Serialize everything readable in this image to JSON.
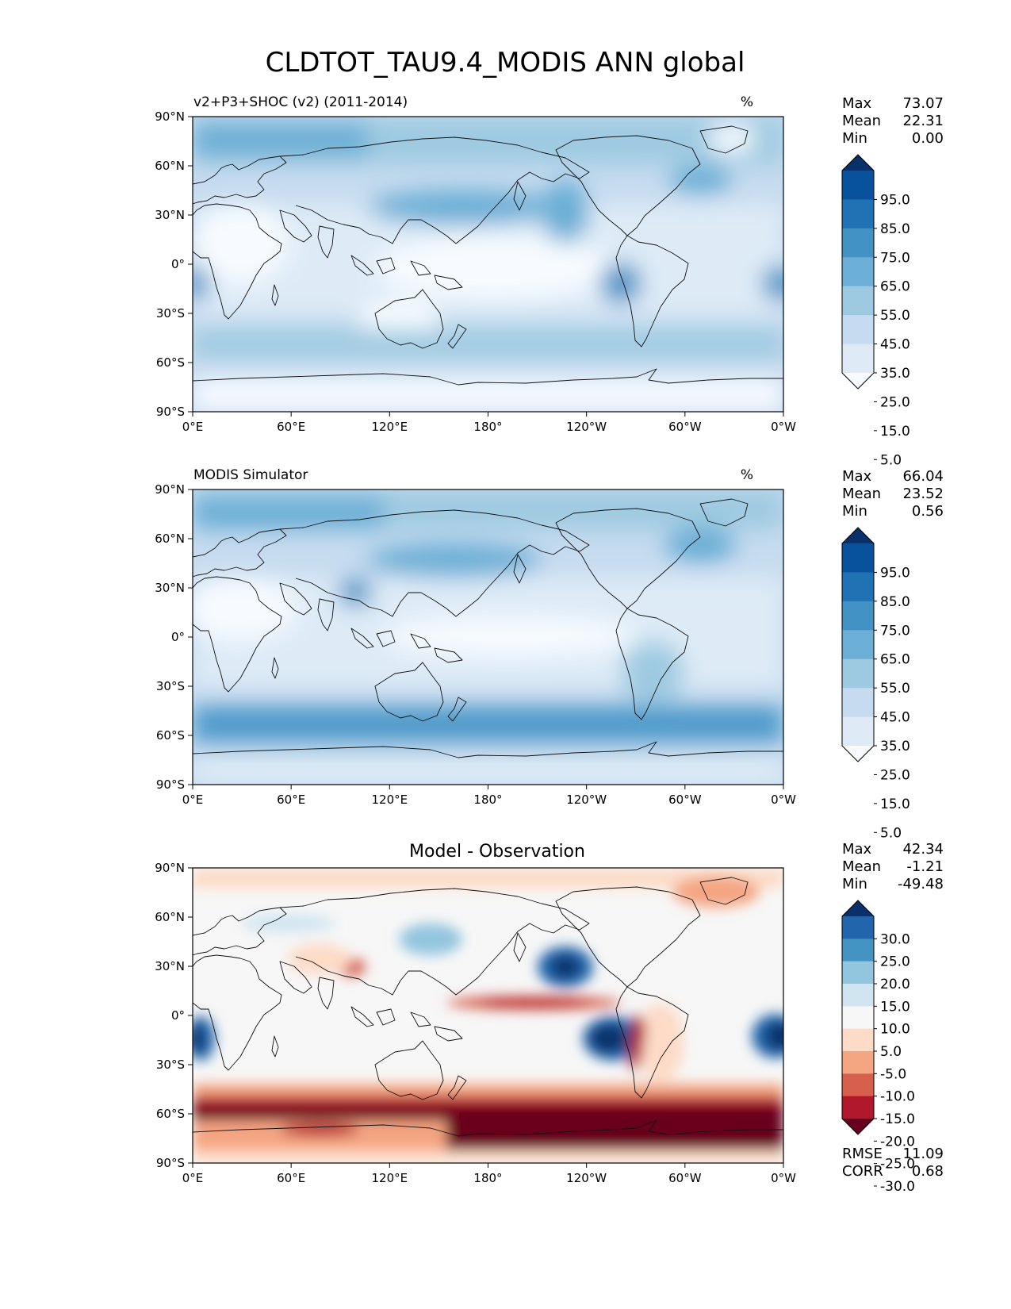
{
  "figure": {
    "title": "CLDTOT_TAU9.4_MODIS ANN global"
  },
  "axes": {
    "lat_ticks": [
      "90°N",
      "60°N",
      "30°N",
      "0°",
      "30°S",
      "60°S",
      "90°S"
    ],
    "lon_ticks": [
      "0°E",
      "60°E",
      "120°E",
      "180°",
      "120°W",
      "60°W",
      "0°W"
    ]
  },
  "panels": [
    {
      "id": "model",
      "title_left": "v2+P3+SHOC (v2) (2011-2014)",
      "title_center": "",
      "units": "%",
      "stats": [
        {
          "label": "Max",
          "value": "73.07"
        },
        {
          "label": "Mean",
          "value": "22.31"
        },
        {
          "label": "Min",
          "value": "0.00"
        }
      ],
      "colorbar": {
        "labels": [
          "95.0",
          "85.0",
          "75.0",
          "65.0",
          "55.0",
          "45.0",
          "35.0",
          "25.0",
          "15.0",
          "5.0"
        ],
        "colors": [
          "#08306b",
          "#08519c",
          "#2171b5",
          "#4292c6",
          "#6baed6",
          "#9ecae1",
          "#c6dbef",
          "#deebf7",
          "#f7fbff"
        ]
      }
    },
    {
      "id": "obs",
      "title_left": "MODIS Simulator",
      "title_center": "",
      "units": "%",
      "stats": [
        {
          "label": "Max",
          "value": "66.04"
        },
        {
          "label": "Mean",
          "value": "23.52"
        },
        {
          "label": "Min",
          "value": "0.56"
        }
      ],
      "colorbar": {
        "labels": [
          "95.0",
          "85.0",
          "75.0",
          "65.0",
          "55.0",
          "45.0",
          "35.0",
          "25.0",
          "15.0",
          "5.0"
        ],
        "colors": [
          "#08306b",
          "#08519c",
          "#2171b5",
          "#4292c6",
          "#6baed6",
          "#9ecae1",
          "#c6dbef",
          "#deebf7",
          "#f7fbff"
        ]
      }
    },
    {
      "id": "diff",
      "title_left": "",
      "title_center": "Model - Observation",
      "units": "",
      "stats": [
        {
          "label": "Max",
          "value": "42.34"
        },
        {
          "label": "Mean",
          "value": "-1.21"
        },
        {
          "label": "Min",
          "value": "-49.48"
        }
      ],
      "extra_stats": [
        {
          "label": "RMSE",
          "value": "11.09"
        },
        {
          "label": "CORR",
          "value": "0.68"
        }
      ],
      "colorbar": {
        "labels": [
          "30.0",
          "25.0",
          "20.0",
          "15.0",
          "10.0",
          "5.0",
          "-5.0",
          "-10.0",
          "-15.0",
          "-20.0",
          "-25.0",
          "-30.0"
        ],
        "colors": [
          "#08306b",
          "#2166ac",
          "#4393c3",
          "#92c5de",
          "#d1e5f0",
          "#f7f7f7",
          "#fddbc7",
          "#f4a582",
          "#d6604d",
          "#b2182b",
          "#67001f"
        ]
      }
    }
  ]
}
